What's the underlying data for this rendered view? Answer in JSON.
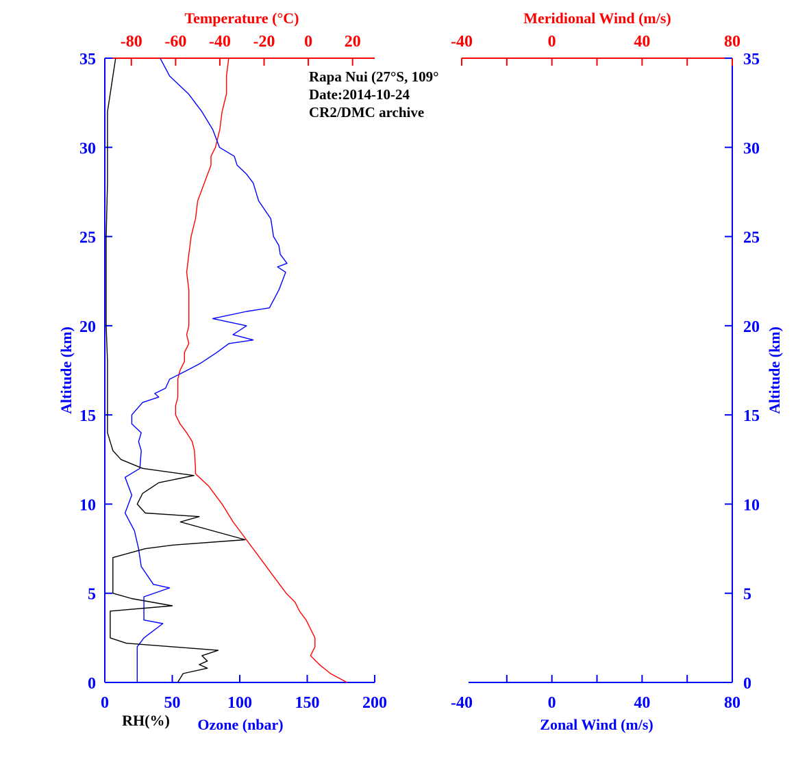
{
  "annotation": {
    "line1": "Rapa Nui (27°S, 109°",
    "line2": "Date:2014-10-24",
    "line3": "CR2/DMC archive"
  },
  "colors": {
    "temperature": "#ff0000",
    "ozone": "#0000ff",
    "rh": "#000000",
    "axis_blue": "#0000ff",
    "axis_red": "#ff0000"
  },
  "chart_data": [
    {
      "type": "line",
      "panel": "left",
      "title": "",
      "ylabel": "Altitude (km)",
      "ylim": [
        0,
        35
      ],
      "yticks": [
        "0",
        "5",
        "10",
        "15",
        "20",
        "25",
        "30",
        "35"
      ],
      "axes": {
        "top": {
          "label": "Temperature (°C)",
          "lim": [
            -92,
            30
          ],
          "ticks": [
            "-80",
            "-60",
            "-40",
            "-20",
            "0",
            "20"
          ]
        },
        "bottom": {
          "label": "Ozone (nbar)",
          "lim": [
            0,
            200
          ],
          "ticks": [
            "0",
            "50",
            "100",
            "150",
            "200"
          ]
        },
        "bottom_rh": {
          "label": "RH(%)",
          "lim": [
            0,
            100
          ]
        }
      },
      "series": [
        {
          "name": "Temperature",
          "axis": "top",
          "points": [
            [
              17.5,
              0
            ],
            [
              10,
              0.5
            ],
            [
              5,
              1
            ],
            [
              1,
              1.5
            ],
            [
              3,
              2
            ],
            [
              3,
              2.5
            ],
            [
              1,
              3
            ],
            [
              -1,
              3.5
            ],
            [
              -4,
              4
            ],
            [
              -6,
              4.5
            ],
            [
              -10,
              5
            ],
            [
              -16,
              6
            ],
            [
              -22,
              7
            ],
            [
              -28,
              8
            ],
            [
              -34,
              9
            ],
            [
              -39,
              10
            ],
            [
              -45,
              11
            ],
            [
              -51,
              11.7
            ],
            [
              -51,
              12
            ],
            [
              -51.5,
              13
            ],
            [
              -52.5,
              13.5
            ],
            [
              -55,
              14
            ],
            [
              -58,
              14.5
            ],
            [
              -60,
              15
            ],
            [
              -60,
              15.5
            ],
            [
              -59,
              16
            ],
            [
              -59,
              17
            ],
            [
              -58,
              17.5
            ],
            [
              -56,
              18
            ],
            [
              -56,
              18.5
            ],
            [
              -54,
              19
            ],
            [
              -55,
              19.5
            ],
            [
              -54,
              20
            ],
            [
              -54,
              21
            ],
            [
              -54,
              22
            ],
            [
              -55,
              23
            ],
            [
              -54,
              24
            ],
            [
              -53,
              25
            ],
            [
              -52,
              25.5
            ],
            [
              -51,
              26
            ],
            [
              -50,
              27
            ],
            [
              -47,
              28
            ],
            [
              -44,
              29
            ],
            [
              -44,
              29.5
            ],
            [
              -42,
              30
            ],
            [
              -40,
              31
            ],
            [
              -39,
              32
            ],
            [
              -37,
              33
            ],
            [
              -37,
              34
            ],
            [
              -36,
              35
            ]
          ]
        },
        {
          "name": "Ozone",
          "axis": "bottom",
          "points": [
            [
              24,
              0
            ],
            [
              24,
              1
            ],
            [
              24,
              1.5
            ],
            [
              24,
              2
            ],
            [
              29,
              2.5
            ],
            [
              43,
              3.3
            ],
            [
              29,
              3.5
            ],
            [
              29,
              4
            ],
            [
              29,
              4.5
            ],
            [
              29,
              4.8
            ],
            [
              48,
              5.3
            ],
            [
              36,
              5.5
            ],
            [
              27,
              6.5
            ],
            [
              25,
              7.5
            ],
            [
              22,
              8.5
            ],
            [
              15,
              9.5
            ],
            [
              20,
              10.5
            ],
            [
              15,
              11.5
            ],
            [
              26,
              12
            ],
            [
              27,
              13
            ],
            [
              25,
              13.5
            ],
            [
              27,
              14
            ],
            [
              20,
              14.5
            ],
            [
              20,
              15
            ],
            [
              28,
              15.7
            ],
            [
              40,
              16
            ],
            [
              37,
              16.2
            ],
            [
              45,
              16.5
            ],
            [
              48,
              17
            ],
            [
              61,
              17.5
            ],
            [
              71,
              17.9
            ],
            [
              83,
              18.5
            ],
            [
              92,
              19
            ],
            [
              110,
              19.2
            ],
            [
              95,
              19.5
            ],
            [
              105,
              20
            ],
            [
              80,
              20.4
            ],
            [
              105,
              20.8
            ],
            [
              122,
              21
            ],
            [
              129,
              22
            ],
            [
              134,
              23
            ],
            [
              128,
              23.3
            ],
            [
              135,
              23.5
            ],
            [
              130,
              24
            ],
            [
              129,
              24.5
            ],
            [
              125,
              25
            ],
            [
              123,
              26
            ],
            [
              114,
              27
            ],
            [
              112,
              27.5
            ],
            [
              110,
              28
            ],
            [
              105,
              28.5
            ],
            [
              98,
              29
            ],
            [
              96,
              29.5
            ],
            [
              85,
              30
            ],
            [
              80,
              31
            ],
            [
              72,
              32
            ],
            [
              62,
              33
            ],
            [
              48,
              34
            ],
            [
              41,
              35
            ]
          ]
        },
        {
          "name": "RH",
          "axis": "bottom_rh",
          "points": [
            [
              27,
              0
            ],
            [
              29,
              0.5
            ],
            [
              38,
              0.8
            ],
            [
              35,
              1
            ],
            [
              38,
              1.2
            ],
            [
              36,
              1.5
            ],
            [
              42,
              1.8
            ],
            [
              8,
              2.2
            ],
            [
              2,
              2.5
            ],
            [
              2,
              3
            ],
            [
              2,
              4
            ],
            [
              25,
              4.3
            ],
            [
              10,
              4.7
            ],
            [
              3,
              5
            ],
            [
              3,
              6
            ],
            [
              3,
              7
            ],
            [
              15,
              7.5
            ],
            [
              25,
              7.7
            ],
            [
              52,
              8
            ],
            [
              28,
              9
            ],
            [
              35,
              9.3
            ],
            [
              15,
              9.5
            ],
            [
              12,
              10
            ],
            [
              14,
              10.6
            ],
            [
              20,
              11.2
            ],
            [
              33,
              11.6
            ],
            [
              14,
              12
            ],
            [
              6,
              12.5
            ],
            [
              3,
              13
            ],
            [
              1,
              14
            ],
            [
              1,
              15
            ],
            [
              1,
              16
            ],
            [
              1,
              18
            ],
            [
              0.5,
              20
            ],
            [
              0.5,
              25
            ],
            [
              1,
              28
            ],
            [
              1,
              30
            ],
            [
              1,
              32
            ],
            [
              2,
              33
            ],
            [
              3,
              34
            ],
            [
              4,
              35
            ]
          ]
        }
      ]
    },
    {
      "type": "line",
      "panel": "right",
      "title": "",
      "ylabel": "Altitude (km)",
      "ylim": [
        0,
        35
      ],
      "yticks": [
        "0",
        "5",
        "10",
        "15",
        "20",
        "25",
        "30",
        "35"
      ],
      "axes": {
        "top": {
          "label": "Meridional Wind (m/s)",
          "lim": [
            -40,
            80
          ],
          "ticks": [
            "-40",
            "0",
            "40",
            "80"
          ]
        },
        "bottom": {
          "label": "Zonal Wind (m/s)",
          "lim": [
            -40,
            80
          ],
          "ticks": [
            "-40",
            "0",
            "40",
            "80"
          ]
        }
      },
      "series": []
    }
  ]
}
